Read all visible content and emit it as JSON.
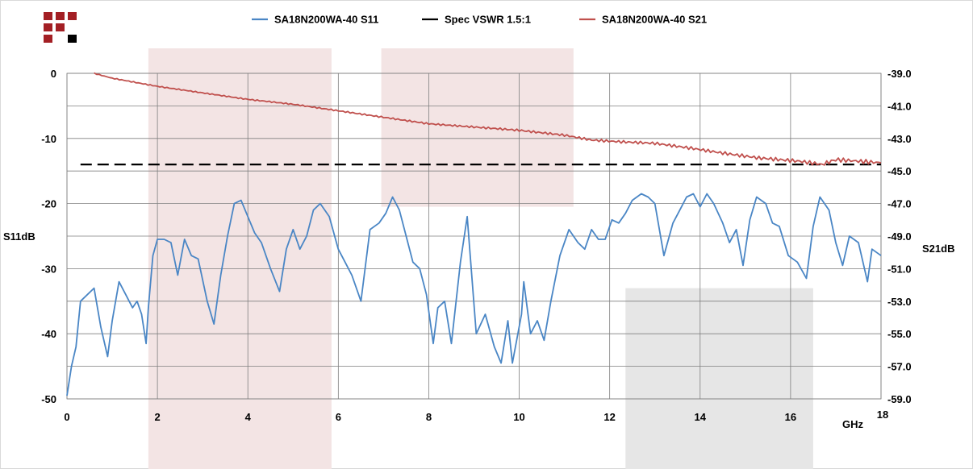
{
  "logo": {
    "name": "company-logo-squares",
    "colors": [
      "#a31f24",
      "#000000"
    ]
  },
  "chart_data": {
    "type": "line",
    "x_unit_label": "GHz",
    "x_ticks": [
      "0",
      "2",
      "4",
      "6",
      "8",
      "10",
      "12",
      "14",
      "16",
      "18"
    ],
    "xlim": [
      0,
      18
    ],
    "left_axis": {
      "label": "S11dB",
      "ylim": [
        -50,
        0
      ],
      "ticks": [
        "0",
        "-10",
        "-20",
        "-30",
        "-40",
        "-50"
      ]
    },
    "right_axis": {
      "label": "S21dB",
      "ylim": [
        -59,
        -39
      ],
      "ticks": [
        "-39.0",
        "-41.0",
        "-43.0",
        "-45.0",
        "-47.0",
        "-49.0",
        "-51.0",
        "-53.0",
        "-55.0",
        "-57.0",
        "-59.0"
      ]
    },
    "grid": true,
    "legend_position": "top",
    "series": [
      {
        "name": "SA18N200WA-40 S11",
        "axis": "left",
        "color": "#4a86c5",
        "style": "solid",
        "x": [
          0,
          0.1,
          0.2,
          0.3,
          0.45,
          0.6,
          0.75,
          0.9,
          1.0,
          1.15,
          1.3,
          1.45,
          1.55,
          1.65,
          1.75,
          1.8,
          1.9,
          2.0,
          2.15,
          2.3,
          2.45,
          2.6,
          2.75,
          2.9,
          3.1,
          3.25,
          3.4,
          3.55,
          3.7,
          3.85,
          4.0,
          4.15,
          4.3,
          4.5,
          4.7,
          4.85,
          5.0,
          5.15,
          5.3,
          5.45,
          5.6,
          5.8,
          6.0,
          6.15,
          6.3,
          6.5,
          6.7,
          6.9,
          7.05,
          7.2,
          7.35,
          7.5,
          7.65,
          7.8,
          7.95,
          8.1,
          8.2,
          8.35,
          8.5,
          8.7,
          8.85,
          9.05,
          9.25,
          9.45,
          9.6,
          9.75,
          9.85,
          10.05,
          10.1,
          10.25,
          10.4,
          10.55,
          10.7,
          10.9,
          11.1,
          11.3,
          11.45,
          11.6,
          11.75,
          11.9,
          12.05,
          12.2,
          12.35,
          12.5,
          12.7,
          12.85,
          13.0,
          13.2,
          13.4,
          13.55,
          13.7,
          13.85,
          14.0,
          14.15,
          14.3,
          14.5,
          14.65,
          14.8,
          14.95,
          15.1,
          15.25,
          15.45,
          15.6,
          15.75,
          15.95,
          16.15,
          16.35,
          16.5,
          16.65,
          16.85,
          17.0,
          17.15,
          17.3,
          17.5,
          17.7,
          17.8,
          18.0
        ],
        "y": [
          -49.5,
          -45,
          -42,
          -35,
          -34,
          -33,
          -39,
          -43.5,
          -38,
          -32,
          -34,
          -36,
          -35,
          -37,
          -41.5,
          -36,
          -28,
          -25.5,
          -25.5,
          -26,
          -31,
          -25.5,
          -28,
          -28.5,
          -35,
          -38.5,
          -31,
          -25,
          -20,
          -19.5,
          -22,
          -24.5,
          -26,
          -30,
          -33.5,
          -27,
          -24,
          -27,
          -25,
          -21,
          -20,
          -22,
          -27,
          -29,
          -31,
          -35,
          -24,
          -23,
          -21.5,
          -19,
          -21,
          -25,
          -29,
          -30,
          -34,
          -41.5,
          -36,
          -35,
          -41.5,
          -29,
          -22,
          -40,
          -37,
          -42,
          -44.5,
          -38,
          -44.5,
          -37,
          -32,
          -40,
          -38,
          -41,
          -35,
          -28,
          -24,
          -26,
          -27,
          -24,
          -25.5,
          -25.5,
          -22.5,
          -23,
          -21.5,
          -19.5,
          -18.5,
          -19,
          -20,
          -28,
          -23,
          -21,
          -19,
          -18.5,
          -20.5,
          -18.5,
          -20,
          -23,
          -26,
          -24,
          -29.5,
          -22.5,
          -19,
          -20,
          -23,
          -23.5,
          -28,
          -29,
          -31.5,
          -23.5,
          -19,
          -21,
          -26,
          -29.5,
          -25,
          -26,
          -32,
          -27,
          -28
        ]
      },
      {
        "name": "Spec VSWR 1.5:1",
        "axis": "left",
        "color": "#000000",
        "style": "dashed",
        "x": [
          0.3,
          18
        ],
        "y": [
          -14,
          -14
        ]
      },
      {
        "name": "SA18N200WA-40 S21",
        "axis": "right",
        "color": "#c0504d",
        "style": "solid",
        "x": [
          0.6,
          1.0,
          2.0,
          3.0,
          4.0,
          5.0,
          6.0,
          7.0,
          8.0,
          9.0,
          10.0,
          11.0,
          11.6,
          12.2,
          13.0,
          13.8,
          14.5,
          15.3,
          16.2,
          16.7,
          17.0,
          17.5,
          18.0
        ],
        "y": [
          -39.0,
          -39.3,
          -39.8,
          -40.2,
          -40.6,
          -40.9,
          -41.3,
          -41.7,
          -42.1,
          -42.3,
          -42.5,
          -42.8,
          -43.1,
          -43.2,
          -43.3,
          -43.6,
          -43.9,
          -44.2,
          -44.4,
          -44.6,
          -44.3,
          -44.4,
          -44.5
        ]
      }
    ],
    "highlight_bands": [
      {
        "x": [
          1.8,
          5.85
        ],
        "color": "#f3e4e4",
        "extent": "full"
      },
      {
        "x": [
          6.95,
          11.2
        ],
        "color": "#f3e4e4",
        "extent": "upper"
      },
      {
        "x": [
          12.35,
          16.5
        ],
        "color": "#e6e6e6",
        "extent": "lower"
      }
    ]
  }
}
